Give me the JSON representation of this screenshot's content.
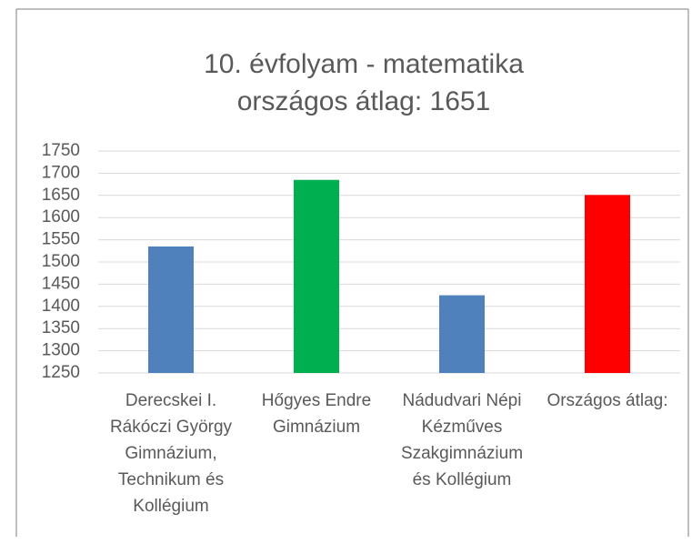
{
  "chart_data": {
    "type": "bar",
    "title": "10. évfolyam - matematika",
    "subtitle": "országos átlag: 1651",
    "categories": [
      "Derecskei I. Rákóczi György Gimnázium, Technikum és Kollégium",
      "Hőgyes Endre Gimnázium",
      "Nádudvari Népi Kézműves Szakgimnázium és Kollégium",
      "Országos átlag:"
    ],
    "values": [
      1535,
      1685,
      1425,
      1651
    ],
    "colors": [
      "#4f81bd",
      "#00b050",
      "#4f81bd",
      "#ff0000"
    ],
    "ylim": [
      1250,
      1750
    ],
    "yticks": [
      1250,
      1300,
      1350,
      1400,
      1450,
      1500,
      1550,
      1600,
      1650,
      1700,
      1750
    ],
    "grid": true
  }
}
